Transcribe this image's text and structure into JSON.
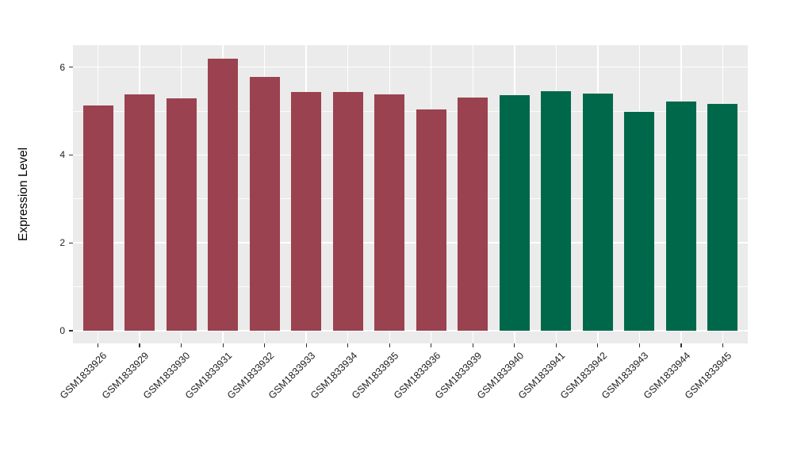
{
  "chart_data": {
    "type": "bar",
    "title": "",
    "xlabel": "",
    "ylabel": "Expression Level",
    "categories": [
      "GSM1833926",
      "GSM1833929",
      "GSM1833930",
      "GSM1833931",
      "GSM1833932",
      "GSM1833933",
      "GSM1833934",
      "GSM1833935",
      "GSM1833936",
      "GSM1833939",
      "GSM1833940",
      "GSM1833941",
      "GSM1833942",
      "GSM1833943",
      "GSM1833944",
      "GSM1833945"
    ],
    "values": [
      5.12,
      5.38,
      5.28,
      6.19,
      5.78,
      5.43,
      5.43,
      5.38,
      5.03,
      5.31,
      5.36,
      5.45,
      5.39,
      4.98,
      5.21,
      5.16
    ],
    "bar_colors": [
      "#9A424F",
      "#9A424F",
      "#9A424F",
      "#9A424F",
      "#9A424F",
      "#9A424F",
      "#9A424F",
      "#9A424F",
      "#9A424F",
      "#9A424F",
      "#00684A",
      "#00684A",
      "#00684A",
      "#00684A",
      "#00684A",
      "#00684A"
    ],
    "groups": [
      {
        "color": "#9A424F",
        "count": 10
      },
      {
        "color": "#00684A",
        "count": 6
      }
    ],
    "y_ticks": [
      0,
      2,
      4,
      6
    ],
    "y_minor_ticks": [
      1,
      3,
      5
    ],
    "ylim": [
      -0.29,
      6.5
    ],
    "grid": true,
    "legend_position": "none",
    "panel_background": "#EBEBEB",
    "gridline_color": "#FFFFFF"
  }
}
